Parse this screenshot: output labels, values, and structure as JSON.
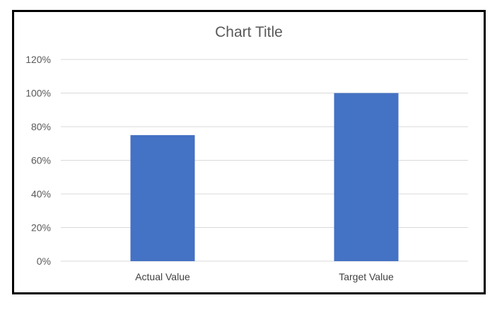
{
  "chart_data": {
    "type": "bar",
    "title": "Chart Title",
    "categories": [
      "Actual Value",
      "Target Value"
    ],
    "values": [
      0.75,
      1.0
    ],
    "ylim": [
      0,
      1.2
    ],
    "yticks": [
      "0%",
      "20%",
      "40%",
      "60%",
      "80%",
      "100%",
      "120%"
    ],
    "grid": true,
    "bar_color": "#4472C4",
    "gridline_color": "#D9D9D9"
  }
}
